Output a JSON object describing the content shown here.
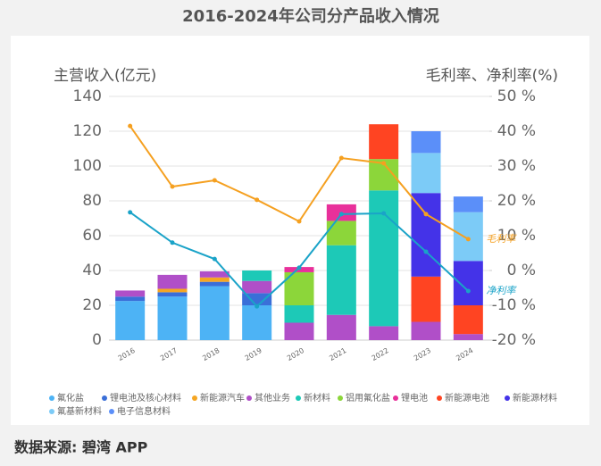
{
  "chart_data": {
    "type": "bar",
    "title": "2016-2024年公司分产品收入情况",
    "y_label": "主营收入(亿元)",
    "y2_label": "毛利率、净利率(%)",
    "source": "数据来源: 碧湾 APP",
    "categories": [
      "2016",
      "2017",
      "2018",
      "2019",
      "2020",
      "2021",
      "2022",
      "2023",
      "2024"
    ],
    "ylim": [
      0,
      140
    ],
    "yticks": [
      0,
      20,
      40,
      60,
      80,
      100,
      120,
      140
    ],
    "y2lim": [
      -20,
      50
    ],
    "y2ticks": [
      {
        "value": -20,
        "label": "-20 %"
      },
      {
        "value": -10,
        "label": "-10 %"
      },
      {
        "value": 0,
        "label": "0 %"
      },
      {
        "value": 10,
        "label": "10 %"
      },
      {
        "value": 20,
        "label": "20 %"
      },
      {
        "value": 30,
        "label": "30 %"
      },
      {
        "value": 40,
        "label": "40 %"
      },
      {
        "value": 50,
        "label": "50 %"
      }
    ],
    "grid": true,
    "series": [
      {
        "name": "氟化盐",
        "color": "#4db3f5",
        "values": [
          22.5,
          25,
          31,
          20,
          null,
          null,
          null,
          null,
          null
        ]
      },
      {
        "name": "锂电池及核心材料",
        "color": "#3a6fd8",
        "values": [
          2.5,
          2.5,
          2.5,
          7,
          null,
          null,
          null,
          null,
          null
        ]
      },
      {
        "name": "新能源汽车",
        "color": "#f5a623",
        "values": [
          null,
          2,
          2.5,
          null,
          null,
          null,
          null,
          null,
          null
        ]
      },
      {
        "name": "其他业务",
        "color": "#b04fc8",
        "values": [
          3.5,
          8,
          3.5,
          7,
          10,
          14.5,
          8,
          10.5,
          3.5
        ]
      },
      {
        "name": "新材料",
        "color": "#1dc9b7",
        "values": [
          null,
          null,
          null,
          6,
          10,
          40,
          78,
          null,
          null
        ]
      },
      {
        "name": "铝用氟化盐",
        "color": "#8cd63a",
        "values": [
          null,
          null,
          null,
          null,
          19,
          14,
          18,
          null,
          null
        ]
      },
      {
        "name": "锂电池",
        "color": "#e8309a",
        "values": [
          null,
          null,
          null,
          null,
          3,
          9.5,
          null,
          null,
          null
        ]
      },
      {
        "name": "新能源电池",
        "color": "#ff4422",
        "values": [
          null,
          null,
          null,
          null,
          null,
          null,
          20,
          26,
          16.5
        ]
      },
      {
        "name": "新能源材料",
        "color": "#4433e8",
        "values": [
          null,
          null,
          null,
          null,
          null,
          null,
          null,
          48,
          25.5
        ]
      },
      {
        "name": "氟基新材料",
        "color": "#7ccbf7",
        "values": [
          null,
          null,
          null,
          null,
          null,
          null,
          null,
          23,
          28
        ]
      },
      {
        "name": "电子信息材料",
        "color": "#5b8ff9",
        "values": [
          null,
          null,
          null,
          null,
          null,
          null,
          null,
          12.5,
          9
        ]
      }
    ],
    "lines": [
      {
        "name": "毛利率",
        "color": "#f5a020",
        "axis": "y2",
        "values": [
          41.5,
          24.1,
          25.9,
          20.3,
          14.1,
          32.3,
          30.8,
          16.2,
          9
        ]
      },
      {
        "name": "净利率",
        "color": "#1aa3c8",
        "axis": "y2",
        "values": [
          16.7,
          8.0,
          3.3,
          -10.3,
          0.8,
          16.2,
          16.4,
          5.4,
          -5.9
        ]
      }
    ]
  }
}
